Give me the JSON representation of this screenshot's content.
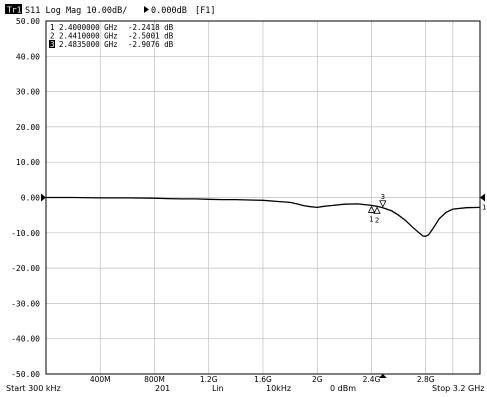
{
  "header": {
    "trace_badge": "Tr1",
    "trace_info": "S11 Log Mag 10.00dB/",
    "ref_value": "0.000dB",
    "channel": "[F1]"
  },
  "markers_table": [
    {
      "num": "1",
      "freq": "2.4000000 GHz",
      "value": "-2.2418 dB",
      "active": false
    },
    {
      "num": "2",
      "freq": "2.4410000 GHz",
      "value": "-2.5001 dB",
      "active": false
    },
    {
      "num": "3",
      "freq": "2.4835000 GHz",
      "value": "-2.9076 dB",
      "active": true
    }
  ],
  "footer": {
    "start": "Start 300 kHz",
    "points": "201",
    "sweep": "Lin",
    "ifbw": "10kHz",
    "power": "0 dBm",
    "stop": "Stop 3.2 GHz"
  },
  "colors": {
    "trace": "#000000",
    "grid": "#c0c0c0",
    "frame": "#000000",
    "background": "#ffffff"
  },
  "chart_data": {
    "type": "line",
    "x_unit": "GHz",
    "xlim": [
      0.0003,
      3.2
    ],
    "ylim": [
      -50,
      50
    ],
    "y_ticks": [
      50,
      40,
      30,
      20,
      10,
      0,
      -10,
      -20,
      -30,
      -40,
      -50
    ],
    "y_tick_labels": [
      "50.00",
      "40.00",
      "30.00",
      "20.00",
      "10.00",
      "0.00",
      "-10.00",
      "-20.00",
      "-30.00",
      "-40.00",
      "-50.00"
    ],
    "x_ticks": [
      0.4,
      0.8,
      1.2,
      1.6,
      2.0,
      2.4,
      2.8
    ],
    "x_tick_labels": [
      "400M",
      "800M",
      "1.2G",
      "1.6G",
      "2G",
      "2.4G",
      "2.8G"
    ],
    "grid": true,
    "reference_level": 0,
    "series": [
      {
        "x": [
          0.0003,
          0.2,
          0.4,
          0.6,
          0.8,
          0.9,
          1.0,
          1.1,
          1.2,
          1.3,
          1.4,
          1.5,
          1.6,
          1.7,
          1.8,
          1.85,
          1.9,
          1.95,
          2.0,
          2.05,
          2.1,
          2.2,
          2.3,
          2.4,
          2.441,
          2.4835,
          2.55,
          2.6,
          2.65,
          2.7,
          2.75,
          2.78,
          2.8,
          2.82,
          2.85,
          2.9,
          2.95,
          3.0,
          3.1,
          3.2
        ],
        "y": [
          0.0,
          0.0,
          -0.1,
          -0.1,
          -0.2,
          -0.3,
          -0.4,
          -0.4,
          -0.5,
          -0.6,
          -0.6,
          -0.7,
          -0.8,
          -1.1,
          -1.4,
          -1.8,
          -2.3,
          -2.6,
          -2.8,
          -2.5,
          -2.3,
          -1.9,
          -1.8,
          -2.2418,
          -2.5001,
          -2.9076,
          -3.8,
          -5.0,
          -6.5,
          -8.3,
          -10.0,
          -10.9,
          -11.0,
          -10.6,
          -9.0,
          -6.0,
          -4.2,
          -3.3,
          -2.9,
          -2.8
        ]
      }
    ],
    "markers": [
      {
        "label": "1",
        "x": 2.4,
        "y": -2.2418
      },
      {
        "label": "2",
        "x": 2.441,
        "y": -2.5001
      },
      {
        "label": "3",
        "x": 2.4835,
        "y": -2.9076
      }
    ]
  }
}
